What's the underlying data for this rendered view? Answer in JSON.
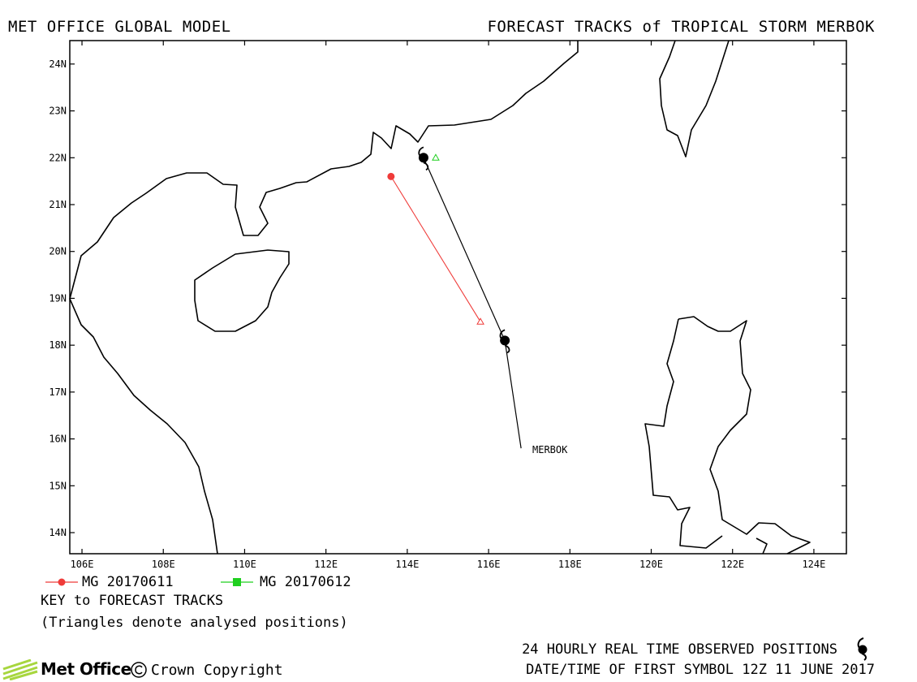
{
  "header": {
    "left_title": "MET OFFICE GLOBAL MODEL",
    "right_title": "FORECAST TRACKS of TROPICAL STORM MERBOK"
  },
  "map": {
    "lat_labels": [
      "24N",
      "23N",
      "22N",
      "21N",
      "20N",
      "19N",
      "18N",
      "17N",
      "16N",
      "15N",
      "14N"
    ],
    "lon_labels": [
      "106E",
      "108E",
      "110E",
      "112E",
      "114E",
      "116E",
      "118E",
      "120E",
      "122E",
      "124E"
    ],
    "lat_range": [
      13.55,
      24.5
    ],
    "lon_range": [
      105.7,
      124.8
    ],
    "storm_label": "MERBOK",
    "observed_track": [
      {
        "lon": 114.4,
        "lat": 22.0,
        "symbol": "storm"
      },
      {
        "lon": 116.4,
        "lat": 18.1,
        "symbol": "storm"
      }
    ],
    "forecast_tracks": [
      {
        "name": "MG 20170611",
        "color": "#ef3b39",
        "points": [
          {
            "lon": 113.6,
            "lat": 21.6
          },
          {
            "lon": 115.8,
            "lat": 18.5
          }
        ],
        "analysed": {
          "lon": 115.8,
          "lat": 18.5
        }
      },
      {
        "name": "MG 20170612",
        "color": "#1fcf1f",
        "points": [],
        "analysed": {
          "lon": 114.7,
          "lat": 22.0
        }
      }
    ]
  },
  "legend": {
    "entry1": "MG 20170611",
    "entry2": "MG 20170612",
    "key_title": "KEY to FORECAST TRACKS",
    "key_note": "(Triangles denote analysed positions)"
  },
  "footer": {
    "observed_note": "24 HOURLY REAL TIME OBSERVED POSITIONS",
    "first_symbol": "DATE/TIME OF FIRST SYMBOL 12Z 11 JUNE 2017",
    "logo_text": "Met Office",
    "copyright": "Crown Copyright"
  }
}
